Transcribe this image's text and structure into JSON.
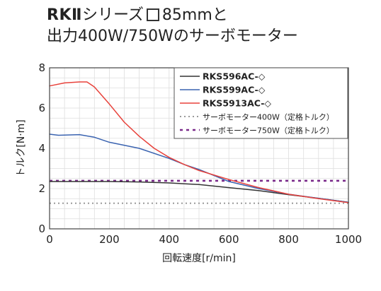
{
  "title": {
    "line1_bold": "RKⅡ",
    "line1_text": "シリーズ",
    "line1_size": "85mm",
    "line1_suffix": "と",
    "line2": "出力400W/750Wのサーボモーター"
  },
  "chart_data": {
    "type": "line",
    "xlabel": "回転速度[r/min]",
    "ylabel": "トルク[N·m]",
    "xlim": [
      0,
      1000
    ],
    "ylim": [
      0,
      8
    ],
    "xticks": [
      0,
      200,
      400,
      600,
      800,
      1000
    ],
    "yticks": [
      0,
      2,
      4,
      6,
      8
    ],
    "grid": true,
    "legend_position": "top-right",
    "series": [
      {
        "name": "RKS596AC-◇",
        "color": "#333333",
        "style": "solid",
        "points": [
          [
            0,
            2.35
          ],
          [
            100,
            2.35
          ],
          [
            200,
            2.35
          ],
          [
            300,
            2.33
          ],
          [
            400,
            2.28
          ],
          [
            500,
            2.2
          ],
          [
            600,
            2.05
          ],
          [
            700,
            1.9
          ],
          [
            800,
            1.7
          ],
          [
            900,
            1.52
          ],
          [
            1000,
            1.32
          ]
        ]
      },
      {
        "name": "RKS599AC-◇",
        "color": "#3a63b0",
        "style": "solid",
        "points": [
          [
            0,
            4.7
          ],
          [
            30,
            4.65
          ],
          [
            100,
            4.68
          ],
          [
            150,
            4.55
          ],
          [
            200,
            4.3
          ],
          [
            300,
            4.0
          ],
          [
            400,
            3.5
          ],
          [
            450,
            3.2
          ],
          [
            500,
            2.95
          ],
          [
            600,
            2.35
          ],
          [
            700,
            2.0
          ],
          [
            800,
            1.72
          ],
          [
            900,
            1.52
          ],
          [
            1000,
            1.32
          ]
        ]
      },
      {
        "name": "RKS5913AC-◇",
        "color": "#e8423b",
        "style": "solid",
        "points": [
          [
            0,
            7.1
          ],
          [
            50,
            7.25
          ],
          [
            100,
            7.3
          ],
          [
            125,
            7.3
          ],
          [
            150,
            7.05
          ],
          [
            200,
            6.2
          ],
          [
            250,
            5.3
          ],
          [
            300,
            4.6
          ],
          [
            350,
            4.0
          ],
          [
            400,
            3.55
          ],
          [
            450,
            3.2
          ],
          [
            500,
            2.9
          ],
          [
            600,
            2.45
          ],
          [
            700,
            2.05
          ],
          [
            800,
            1.72
          ],
          [
            900,
            1.5
          ],
          [
            1000,
            1.3
          ]
        ]
      },
      {
        "name": "サーボモーター400W（定格トルク）",
        "color": "#9a9a9a",
        "style": "dotted",
        "points": [
          [
            0,
            1.27
          ],
          [
            1000,
            1.27
          ]
        ]
      },
      {
        "name": "サーボモーター750W（定格トルク）",
        "color": "#7a2a8a",
        "style": "dotted",
        "points": [
          [
            0,
            2.39
          ],
          [
            1000,
            2.39
          ]
        ]
      }
    ]
  }
}
